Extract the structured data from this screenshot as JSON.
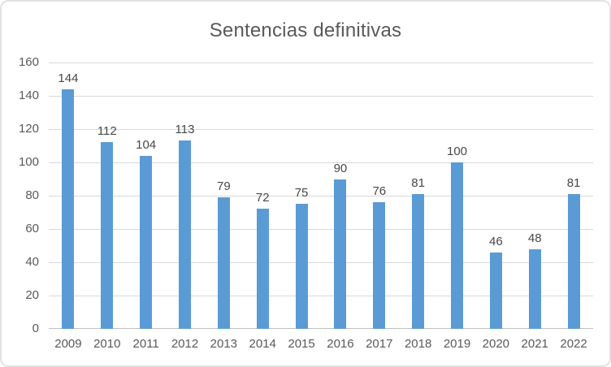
{
  "chart_data": {
    "type": "bar",
    "title": "Sentencias definitivas",
    "categories": [
      "2009",
      "2010",
      "2011",
      "2012",
      "2013",
      "2014",
      "2015",
      "2016",
      "2017",
      "2018",
      "2019",
      "2020",
      "2021",
      "2022"
    ],
    "values": [
      144,
      112,
      104,
      113,
      79,
      72,
      75,
      90,
      76,
      81,
      100,
      46,
      48,
      81
    ],
    "xlabel": "",
    "ylabel": "",
    "ylim": [
      0,
      160
    ],
    "y_ticks": [
      0,
      20,
      40,
      60,
      80,
      100,
      120,
      140,
      160
    ],
    "grid": "horizontal",
    "legend": "none",
    "data_labels": "outside-end",
    "colors": {
      "bar": "#5b9bd5",
      "gridline": "#d9d9d9",
      "axis_line": "#bfbfbf",
      "title_text": "#595959",
      "tick_text": "#595959",
      "value_text": "#474747",
      "frame_border": "#e2e2e2",
      "background": "#ffffff"
    }
  }
}
